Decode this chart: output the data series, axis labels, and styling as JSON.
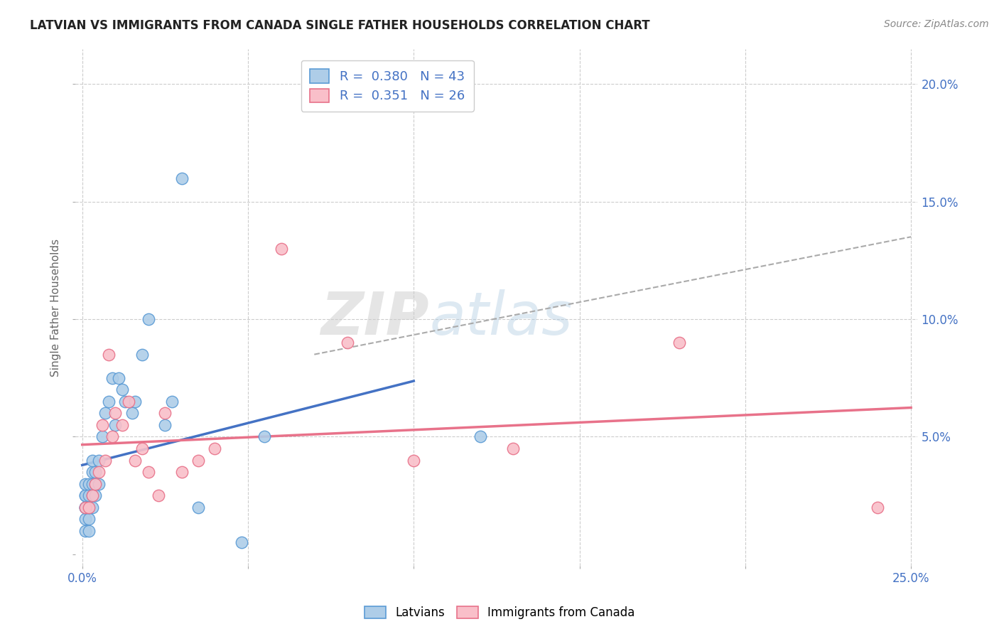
{
  "title": "LATVIAN VS IMMIGRANTS FROM CANADA SINGLE FATHER HOUSEHOLDS CORRELATION CHART",
  "source": "Source: ZipAtlas.com",
  "ylabel": "Single Father Households",
  "xlim": [
    -0.002,
    0.252
  ],
  "ylim": [
    -0.005,
    0.215
  ],
  "xticks": [
    0.0,
    0.05,
    0.1,
    0.15,
    0.2,
    0.25
  ],
  "yticks": [
    0.0,
    0.05,
    0.1,
    0.15,
    0.2
  ],
  "xtick_labels_edge": [
    "0.0%",
    "",
    "",
    "",
    "",
    "25.0%"
  ],
  "ytick_labels_right": [
    "",
    "5.0%",
    "10.0%",
    "15.0%",
    "20.0%"
  ],
  "legend_R1": "0.380",
  "legend_N1": "43",
  "legend_R2": "0.351",
  "legend_N2": "26",
  "latvian_color": "#aecde8",
  "canada_color": "#f9bfc9",
  "latvian_edge": "#5b9bd5",
  "canada_edge": "#e8728a",
  "latvian_x": [
    0.001,
    0.001,
    0.001,
    0.001,
    0.001,
    0.001,
    0.001,
    0.001,
    0.002,
    0.002,
    0.002,
    0.002,
    0.002,
    0.002,
    0.003,
    0.003,
    0.003,
    0.003,
    0.003,
    0.004,
    0.004,
    0.004,
    0.005,
    0.005,
    0.006,
    0.007,
    0.008,
    0.009,
    0.01,
    0.011,
    0.012,
    0.013,
    0.015,
    0.016,
    0.018,
    0.02,
    0.025,
    0.027,
    0.03,
    0.035,
    0.048,
    0.055,
    0.12
  ],
  "latvian_y": [
    0.01,
    0.015,
    0.02,
    0.02,
    0.02,
    0.025,
    0.025,
    0.03,
    0.01,
    0.015,
    0.02,
    0.02,
    0.025,
    0.03,
    0.02,
    0.025,
    0.03,
    0.035,
    0.04,
    0.025,
    0.03,
    0.035,
    0.03,
    0.04,
    0.05,
    0.06,
    0.065,
    0.075,
    0.055,
    0.075,
    0.07,
    0.065,
    0.06,
    0.065,
    0.085,
    0.1,
    0.055,
    0.065,
    0.16,
    0.02,
    0.005,
    0.05,
    0.05
  ],
  "canada_x": [
    0.001,
    0.002,
    0.003,
    0.004,
    0.005,
    0.006,
    0.007,
    0.008,
    0.009,
    0.01,
    0.012,
    0.014,
    0.016,
    0.018,
    0.02,
    0.023,
    0.025,
    0.03,
    0.035,
    0.04,
    0.06,
    0.08,
    0.1,
    0.13,
    0.18,
    0.24
  ],
  "canada_y": [
    0.02,
    0.02,
    0.025,
    0.03,
    0.035,
    0.055,
    0.04,
    0.085,
    0.05,
    0.06,
    0.055,
    0.065,
    0.04,
    0.045,
    0.035,
    0.025,
    0.06,
    0.035,
    0.04,
    0.045,
    0.13,
    0.09,
    0.04,
    0.045,
    0.09,
    0.02
  ],
  "watermark_zip": "ZIP",
  "watermark_atlas": "atlas",
  "background_color": "#ffffff",
  "grid_color": "#cccccc",
  "tick_color": "#4472c4",
  "line_blue": "#4472c4",
  "line_pink": "#e8728a",
  "line_gray": "#aaaaaa",
  "latvian_line_xlim": [
    0.0,
    0.1
  ],
  "canada_line_xlim": [
    0.0,
    0.25
  ],
  "gray_dash_xlim": [
    0.07,
    0.25
  ],
  "gray_dash_ylim": [
    0.085,
    0.135
  ]
}
